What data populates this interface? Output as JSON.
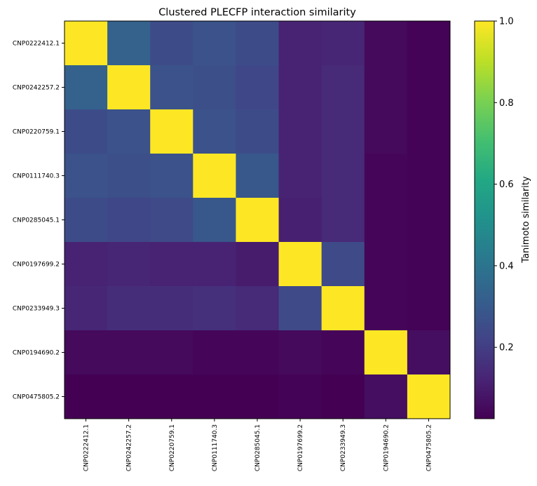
{
  "chart_data": {
    "type": "heatmap",
    "title": "Clustered PLECFP interaction similarity",
    "colormap": "viridis",
    "colorbar": {
      "label": "Tanimoto similarity",
      "range": [
        0.025,
        1.0
      ],
      "ticks": [
        0.2,
        0.4,
        0.6,
        0.8,
        1.0
      ],
      "tick_labels": [
        "0.2",
        "0.4",
        "0.6",
        "0.8",
        "1.0"
      ]
    },
    "row_labels": [
      "CNP0222412.1",
      "CNP0242257.2",
      "CNP0220759.1",
      "CNP0111740.3",
      "CNP0285045.1",
      "CNP0197699.2",
      "CNP0233949.3",
      "CNP0194690.2",
      "CNP0475805.2"
    ],
    "col_labels": [
      "CNP0222412.1",
      "CNP0242257.2",
      "CNP0220759.1",
      "CNP0111740.3",
      "CNP0285045.1",
      "CNP0197699.2",
      "CNP0233949.3",
      "CNP0194690.2",
      "CNP0475805.2"
    ],
    "values": [
      [
        1.0,
        0.33,
        0.25,
        0.27,
        0.25,
        0.12,
        0.13,
        0.05,
        0.03
      ],
      [
        0.33,
        1.0,
        0.27,
        0.26,
        0.23,
        0.12,
        0.14,
        0.05,
        0.03
      ],
      [
        0.25,
        0.27,
        1.0,
        0.27,
        0.25,
        0.12,
        0.14,
        0.05,
        0.03
      ],
      [
        0.27,
        0.26,
        0.27,
        1.0,
        0.29,
        0.12,
        0.14,
        0.04,
        0.03
      ],
      [
        0.25,
        0.23,
        0.24,
        0.29,
        1.0,
        0.11,
        0.14,
        0.04,
        0.03
      ],
      [
        0.12,
        0.13,
        0.12,
        0.12,
        0.1,
        1.0,
        0.24,
        0.04,
        0.03
      ],
      [
        0.13,
        0.15,
        0.15,
        0.16,
        0.14,
        0.24,
        1.0,
        0.04,
        0.03
      ],
      [
        0.05,
        0.05,
        0.05,
        0.04,
        0.04,
        0.05,
        0.04,
        1.0,
        0.06
      ],
      [
        0.025,
        0.025,
        0.025,
        0.025,
        0.025,
        0.03,
        0.025,
        0.06,
        1.0
      ]
    ]
  }
}
